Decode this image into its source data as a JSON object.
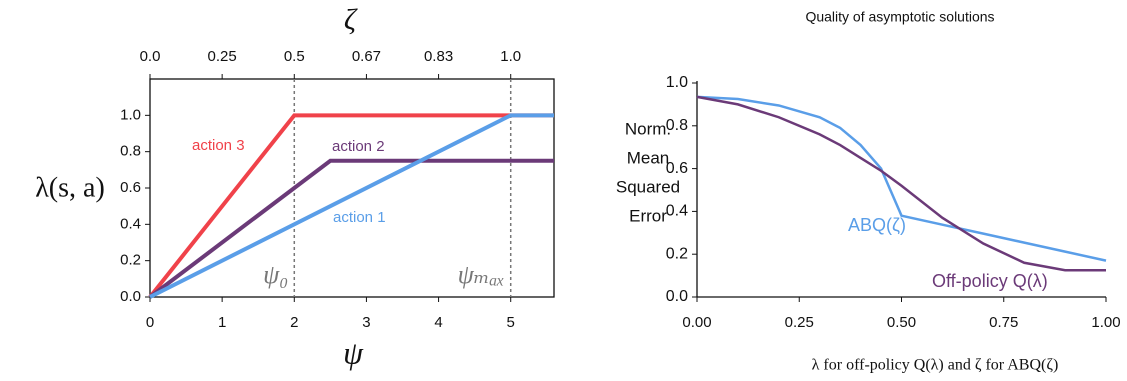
{
  "chart_data": [
    {
      "type": "line",
      "xlabel": "ψ",
      "ylabel": "λ(s, a)",
      "x2label": "ζ",
      "xlim": [
        0,
        5.6
      ],
      "ylim": [
        0,
        1.2
      ],
      "xticks": [
        0,
        1,
        2,
        3,
        4,
        5
      ],
      "x2ticks": [
        {
          "value": 0,
          "label": "0.0"
        },
        0.25,
        0.5,
        0.67,
        0.83,
        {
          "value": 1,
          "label": "1.0"
        }
      ],
      "yticks": [
        {
          "value": 0,
          "label": "0.0"
        },
        0.2,
        0.4,
        0.6,
        0.8,
        {
          "value": 1,
          "label": "1.0"
        }
      ],
      "vlines": [
        {
          "x": 2,
          "label": "ψ₀"
        },
        {
          "x": 5,
          "label": "ψₘₐₓ"
        }
      ],
      "series": [
        {
          "name": "action 3",
          "color": "#f0424a",
          "x": [
            0,
            2,
            5.6
          ],
          "values": [
            0,
            1,
            1
          ]
        },
        {
          "name": "action 2",
          "color": "#6b3a78",
          "x": [
            0,
            2.5,
            5.6
          ],
          "values": [
            0,
            0.75,
            0.75
          ]
        },
        {
          "name": "action 1",
          "color": "#5a9ee8",
          "x": [
            0,
            5,
            5.6
          ],
          "values": [
            0,
            1,
            1
          ]
        }
      ]
    },
    {
      "type": "line",
      "title": "Quality of asymptotic solutions",
      "ylabel": [
        "Norm.",
        "Mean",
        "Squared",
        "Error"
      ],
      "xlabel": "λ for off-policy Q(λ) and ζ for ABQ(ζ)",
      "xlim": [
        0,
        1
      ],
      "ylim": [
        0,
        1
      ],
      "xticks": [
        {
          "value": 0,
          "label": "0.00"
        },
        0.25,
        {
          "value": 0.5,
          "label": "0.50"
        },
        0.75,
        {
          "value": 1,
          "label": "1.00"
        }
      ],
      "yticks": [
        {
          "value": 0,
          "label": "0.0"
        },
        0.2,
        0.4,
        0.6,
        0.8,
        {
          "value": 1,
          "label": "1.0"
        }
      ],
      "x": [
        0,
        0.1,
        0.2,
        0.3,
        0.35,
        0.4,
        0.45,
        0.5,
        0.6,
        0.7,
        0.8,
        0.9,
        1.0
      ],
      "series": [
        {
          "name": "ABQ(ζ)",
          "color": "#5a9ee8",
          "values": [
            0.935,
            0.925,
            0.895,
            0.84,
            0.79,
            0.71,
            0.6,
            0.38,
            0.338,
            0.296,
            0.254,
            0.212,
            0.17
          ]
        },
        {
          "name": "Off-policy Q(λ)",
          "color": "#6b3a78",
          "values": [
            0.935,
            0.9,
            0.84,
            0.76,
            0.71,
            0.65,
            0.59,
            0.52,
            0.37,
            0.25,
            0.16,
            0.125,
            0.125
          ]
        }
      ]
    }
  ]
}
